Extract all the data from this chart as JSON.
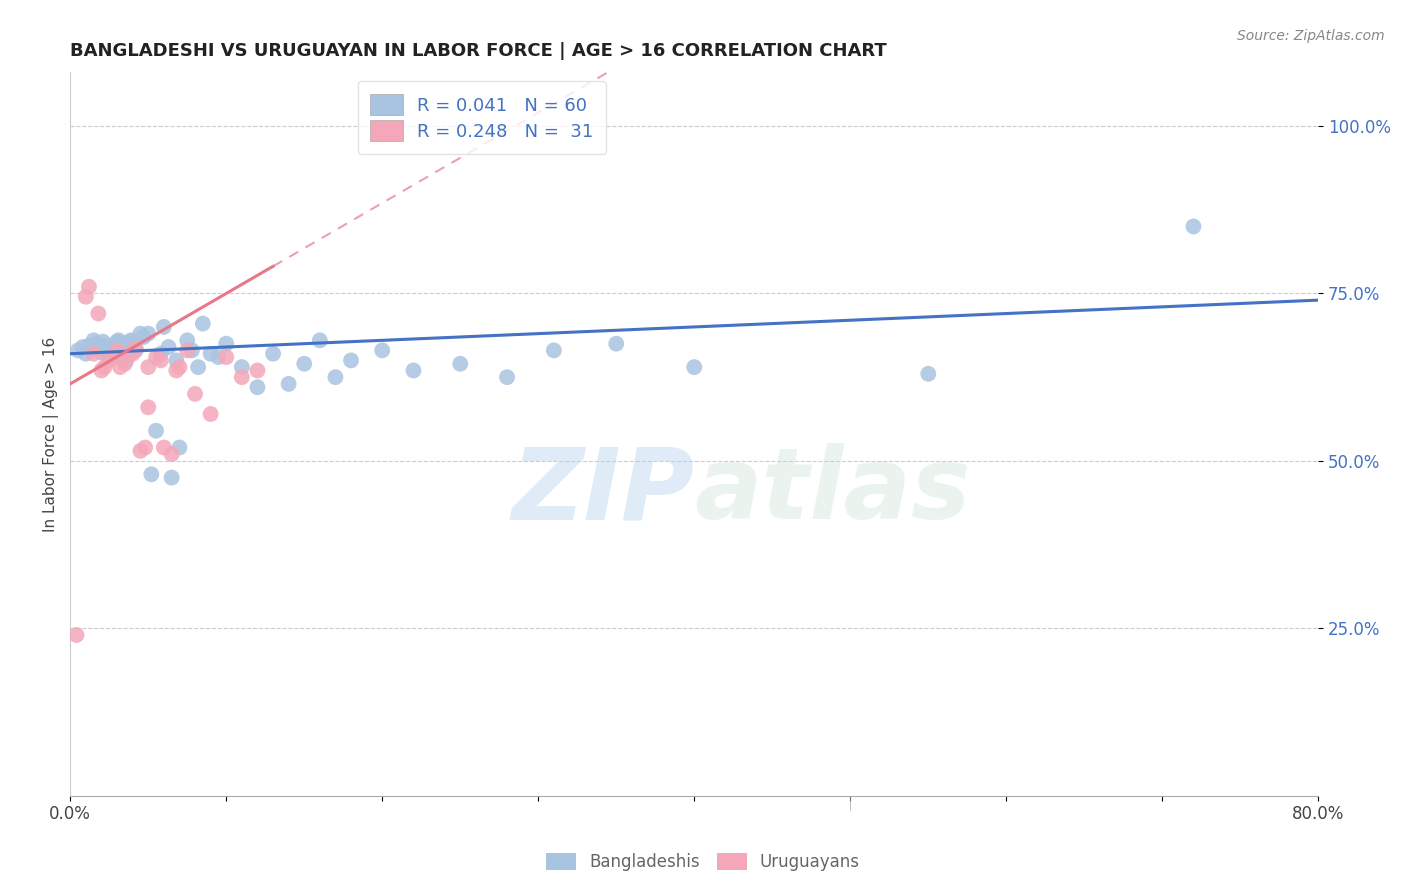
{
  "title": "BANGLADESHI VS URUGUAYAN IN LABOR FORCE | AGE > 16 CORRELATION CHART",
  "source": "Source: ZipAtlas.com",
  "ylabel": "In Labor Force | Age > 16",
  "xlabel_ticks": [
    "0.0%",
    "",
    "",
    "",
    "",
    "",
    "",
    "",
    "80.0%"
  ],
  "xlabel_vals": [
    0.0,
    0.1,
    0.2,
    0.3,
    0.4,
    0.5,
    0.6,
    0.7,
    0.8
  ],
  "ytick_vals": [
    0.25,
    0.5,
    0.75,
    1.0
  ],
  "ytick_labels": [
    "25.0%",
    "50.0%",
    "75.0%",
    "100.0%"
  ],
  "xlim": [
    0.0,
    0.8
  ],
  "ylim": [
    0.0,
    1.08
  ],
  "blue_color": "#a8c4e0",
  "pink_color": "#f4a7b9",
  "blue_line_color": "#4472c4",
  "pink_line_color": "#e8778a",
  "legend_blue_label": "R = 0.041   N = 60",
  "legend_pink_label": "R = 0.248   N =  31",
  "watermark_zip": "ZIP",
  "watermark_atlas": "atlas",
  "bottom_legend_blue": "Bangladeshis",
  "bottom_legend_pink": "Uruguayans",
  "blue_x": [
    0.005,
    0.008,
    0.01,
    0.012,
    0.015,
    0.017,
    0.018,
    0.02,
    0.021,
    0.022,
    0.023,
    0.025,
    0.026,
    0.027,
    0.028,
    0.03,
    0.031,
    0.033,
    0.034,
    0.035,
    0.036,
    0.038,
    0.039,
    0.04,
    0.042,
    0.045,
    0.047,
    0.05,
    0.052,
    0.055,
    0.058,
    0.06,
    0.063,
    0.065,
    0.068,
    0.07,
    0.075,
    0.078,
    0.082,
    0.085,
    0.09,
    0.095,
    0.1,
    0.11,
    0.12,
    0.13,
    0.14,
    0.15,
    0.16,
    0.17,
    0.18,
    0.2,
    0.22,
    0.25,
    0.28,
    0.31,
    0.35,
    0.4,
    0.55,
    0.72
  ],
  "blue_y": [
    0.665,
    0.67,
    0.66,
    0.672,
    0.68,
    0.675,
    0.668,
    0.662,
    0.678,
    0.672,
    0.668,
    0.655,
    0.665,
    0.672,
    0.66,
    0.678,
    0.68,
    0.665,
    0.672,
    0.66,
    0.65,
    0.678,
    0.68,
    0.675,
    0.665,
    0.69,
    0.685,
    0.69,
    0.48,
    0.545,
    0.66,
    0.7,
    0.67,
    0.475,
    0.65,
    0.52,
    0.68,
    0.665,
    0.64,
    0.705,
    0.66,
    0.655,
    0.675,
    0.64,
    0.61,
    0.66,
    0.615,
    0.645,
    0.68,
    0.625,
    0.65,
    0.665,
    0.635,
    0.645,
    0.625,
    0.665,
    0.675,
    0.64,
    0.63,
    0.85
  ],
  "pink_x": [
    0.004,
    0.01,
    0.012,
    0.015,
    0.018,
    0.02,
    0.022,
    0.025,
    0.027,
    0.03,
    0.032,
    0.035,
    0.038,
    0.04,
    0.042,
    0.045,
    0.048,
    0.05,
    0.055,
    0.058,
    0.06,
    0.065,
    0.068,
    0.07,
    0.075,
    0.08,
    0.09,
    0.1,
    0.11,
    0.12,
    0.05
  ],
  "pink_y": [
    0.24,
    0.745,
    0.76,
    0.66,
    0.72,
    0.635,
    0.64,
    0.65,
    0.655,
    0.665,
    0.64,
    0.645,
    0.66,
    0.66,
    0.668,
    0.515,
    0.52,
    0.64,
    0.655,
    0.65,
    0.52,
    0.51,
    0.635,
    0.64,
    0.665,
    0.6,
    0.57,
    0.655,
    0.625,
    0.635,
    0.58
  ]
}
